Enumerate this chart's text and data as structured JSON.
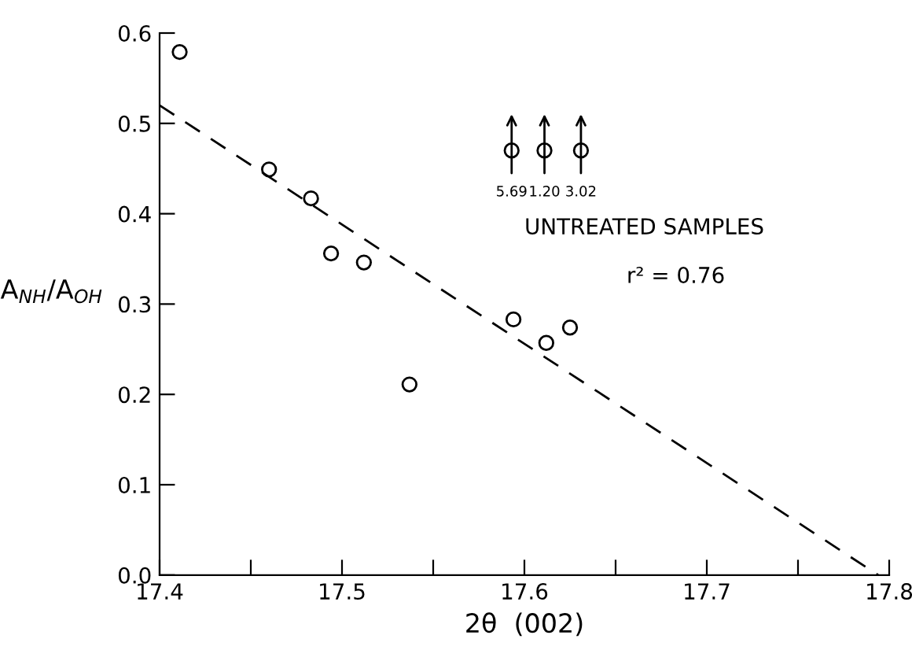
{
  "chart_data": {
    "type": "scatter",
    "xlabel": "2θ  (002)",
    "ylabel": "A$_{NH}$/A$_{OH}$",
    "xlim": [
      17.4,
      17.8
    ],
    "ylim": [
      0.0,
      0.6
    ],
    "xticks": [
      17.4,
      {
        "value": 17.45,
        "label": null
      },
      17.5,
      {
        "value": 17.55,
        "label": null
      },
      17.6,
      {
        "value": 17.65,
        "label": null
      },
      17.7,
      {
        "value": 17.75,
        "label": null
      },
      17.8
    ],
    "yticks": [
      {
        "value": 0,
        "label": "0.0"
      },
      0.1,
      0.2,
      0.3,
      0.4,
      0.5,
      0.6
    ],
    "marker": "circle",
    "grid": false,
    "series": [
      {
        "color": "#000000",
        "x": [
          17.411,
          17.46,
          17.483,
          17.494,
          17.512,
          17.537,
          17.594,
          17.612,
          17.625
        ],
        "values": [
          0.579,
          0.449,
          0.417,
          0.356,
          0.346,
          0.211,
          0.283,
          0.257,
          0.274
        ]
      },
      {
        "color": "#000000",
        "x": [
          17.593,
          17.611,
          17.631
        ],
        "values": [
          0.47,
          0.47,
          0.47
        ]
      },
      {
        "type": "line",
        "color": "#000000",
        "line_style": "dashed",
        "marker": "none",
        "x": [
          17.4,
          17.794
        ],
        "values": [
          0.52,
          0.0
        ]
      }
    ],
    "annotations": [
      {
        "text": "5.69",
        "x": 17.593,
        "y": 0.47
      },
      {
        "text": "1.20",
        "x": 17.611,
        "y": 0.47
      },
      {
        "text": "3.02",
        "x": 17.631,
        "y": 0.47
      },
      "UNTREATED SAMPLES",
      "r² = 0.76"
    ]
  }
}
